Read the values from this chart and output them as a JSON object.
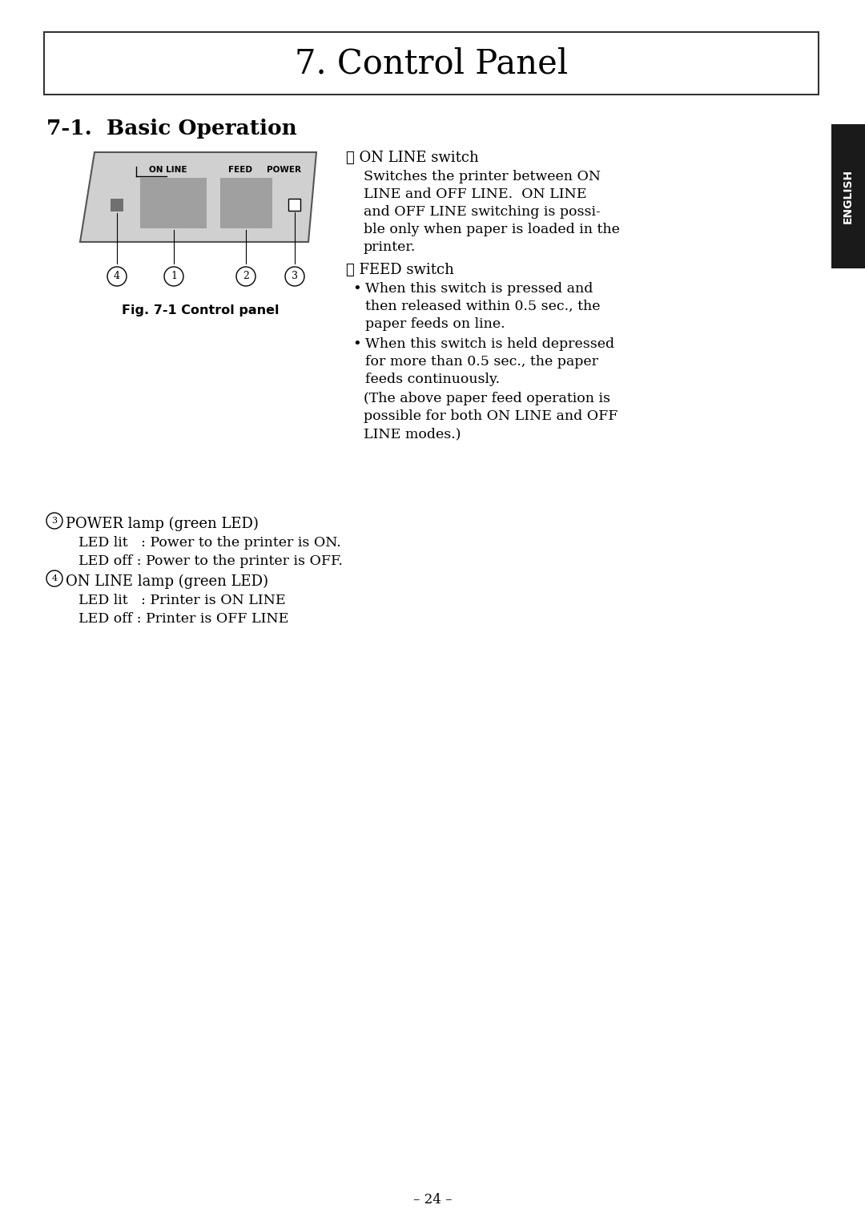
{
  "title": "7. Control Panel",
  "section_title": "7-1.  Basic Operation",
  "fig_caption": "Fig. 7-1 Control panel",
  "page_number": "– 24 –",
  "sidebar_text": "ENGLISH",
  "on_line_switch_title": "① ON LINE switch",
  "on_line_switch_body_lines": [
    "Switches the printer between ON",
    "LINE and OFF LINE.  ON LINE",
    "and OFF LINE switching is possi-",
    "ble only when paper is loaded in the",
    "printer."
  ],
  "feed_switch_title": "② FEED switch",
  "feed_bullet1_lines": [
    "When this switch is pressed and",
    "then released within 0.5 sec., the",
    "paper feeds on line."
  ],
  "feed_bullet2_lines": [
    "When this switch is held depressed",
    "for more than 0.5 sec., the paper",
    "feeds continuously."
  ],
  "feed_paren_lines": [
    "(The above paper feed operation is",
    "possible for both ON LINE and OFF",
    "LINE modes.)"
  ],
  "power_lamp_title": "③ POWER lamp (green LED)",
  "power_lamp_line1": "LED lit   : Power to the printer is ON.",
  "power_lamp_line2": "LED off : Power to the printer is OFF.",
  "online_lamp_title": "④ ON LINE lamp (green LED)",
  "online_lamp_line1": "LED lit   : Printer is ON LINE",
  "online_lamp_line2": "LED off : Printer is OFF LINE",
  "bg_color": "#ffffff",
  "text_color": "#000000",
  "panel_bg": "#d0d0d0",
  "panel_border": "#555555",
  "button_color": "#a0a0a0",
  "led_dark": "#707070",
  "led_white": "#ffffff",
  "sidebar_bg": "#1a1a1a",
  "sidebar_text_color": "#ffffff",
  "title_font": "DejaVu Serif",
  "body_font": "DejaVu Serif"
}
